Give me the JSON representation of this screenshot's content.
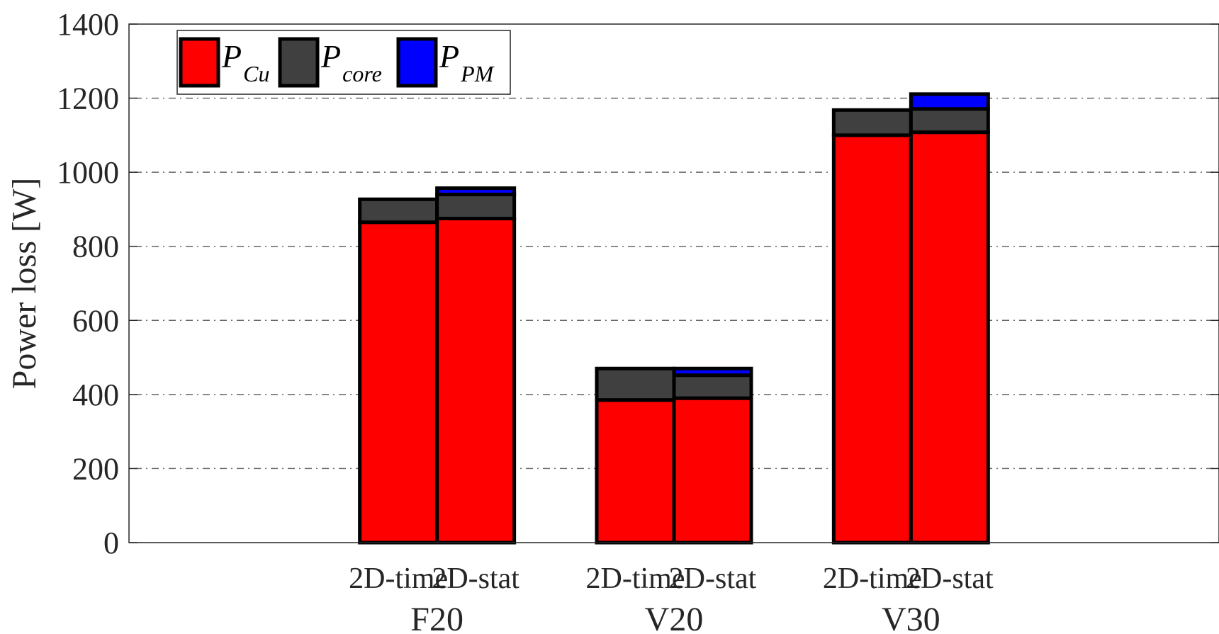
{
  "chart_data": {
    "type": "bar",
    "stacked": true,
    "ylabel": "Power loss [W]",
    "ylim": [
      0,
      1400
    ],
    "yticks": [
      0,
      200,
      400,
      600,
      800,
      1000,
      1200,
      1400
    ],
    "grid": "horizontal-dashed",
    "legend_position": "top-left",
    "groups": [
      "F20",
      "V20",
      "V30"
    ],
    "bar_labels": [
      "2D-time",
      "2D-stat"
    ],
    "bars": [
      {
        "group": 0,
        "label": "2D-time",
        "values": [
          865,
          62,
          0
        ]
      },
      {
        "group": 0,
        "label": "2D-stat",
        "values": [
          875,
          65,
          17
        ]
      },
      {
        "group": 1,
        "label": "2D-time",
        "values": [
          385,
          85,
          0
        ]
      },
      {
        "group": 1,
        "label": "2D-stat",
        "values": [
          390,
          62,
          18
        ]
      },
      {
        "group": 2,
        "label": "2D-time",
        "values": [
          1100,
          68,
          0
        ]
      },
      {
        "group": 2,
        "label": "2D-stat",
        "values": [
          1108,
          63,
          40
        ]
      }
    ],
    "series": [
      {
        "main": "P",
        "sub": "Cu",
        "color": "#ff0000"
      },
      {
        "main": "P",
        "sub": "core",
        "color": "#404040"
      },
      {
        "main": "P",
        "sub": "PM",
        "color": "#0000ff"
      }
    ]
  }
}
